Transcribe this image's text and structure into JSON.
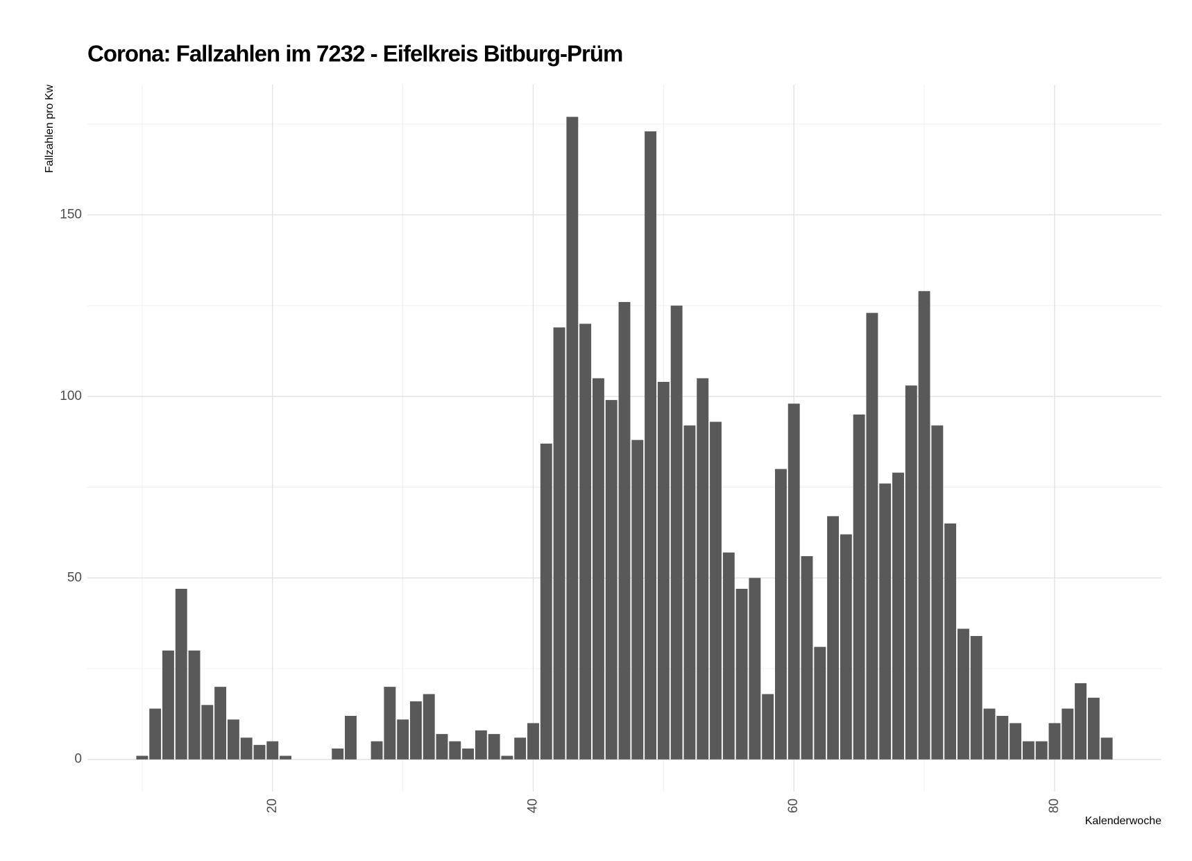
{
  "chart_data": {
    "type": "bar",
    "title": "Corona: Fallzahlen im 7232 - Eifelkreis Bitburg-Prüm",
    "x_label": "Kalenderwoche",
    "y_label": "Fallzahlen pro Kw",
    "color": "#595959",
    "x": [
      10,
      11,
      12,
      13,
      14,
      15,
      16,
      17,
      18,
      19,
      20,
      21,
      25,
      26,
      28,
      29,
      30,
      31,
      32,
      33,
      34,
      35,
      36,
      37,
      38,
      39,
      40,
      41,
      42,
      43,
      44,
      45,
      46,
      47,
      48,
      49,
      50,
      51,
      52,
      53,
      54,
      55,
      56,
      57,
      58,
      59,
      60,
      61,
      62,
      63,
      64,
      65,
      66,
      67,
      68,
      69,
      70,
      71,
      72,
      73,
      74,
      75,
      76,
      77,
      78,
      79,
      80,
      81,
      82,
      83,
      84
    ],
    "values": [
      1,
      14,
      30,
      47,
      30,
      15,
      20,
      11,
      6,
      4,
      5,
      1,
      3,
      12,
      5,
      20,
      11,
      16,
      18,
      7,
      5,
      3,
      8,
      7,
      1,
      6,
      10,
      87,
      119,
      177,
      120,
      105,
      99,
      126,
      88,
      173,
      104,
      125,
      92,
      105,
      93,
      57,
      47,
      50,
      18,
      80,
      98,
      56,
      31,
      67,
      62,
      95,
      123,
      76,
      79,
      103,
      129,
      92,
      65,
      36,
      34,
      14,
      12,
      10,
      5,
      5,
      10,
      14,
      21,
      17,
      6
    ],
    "bar_width": 0.9,
    "xlim": [
      5.8,
      88.2
    ],
    "xticks": [
      20,
      40,
      60,
      80
    ],
    "xminor": [
      10,
      30,
      50,
      70
    ],
    "ylim": [
      -8.85,
      185.85
    ],
    "yticks": [
      0,
      50,
      100,
      150
    ],
    "yminor": [
      25,
      75,
      125,
      175
    ],
    "grid": true
  }
}
